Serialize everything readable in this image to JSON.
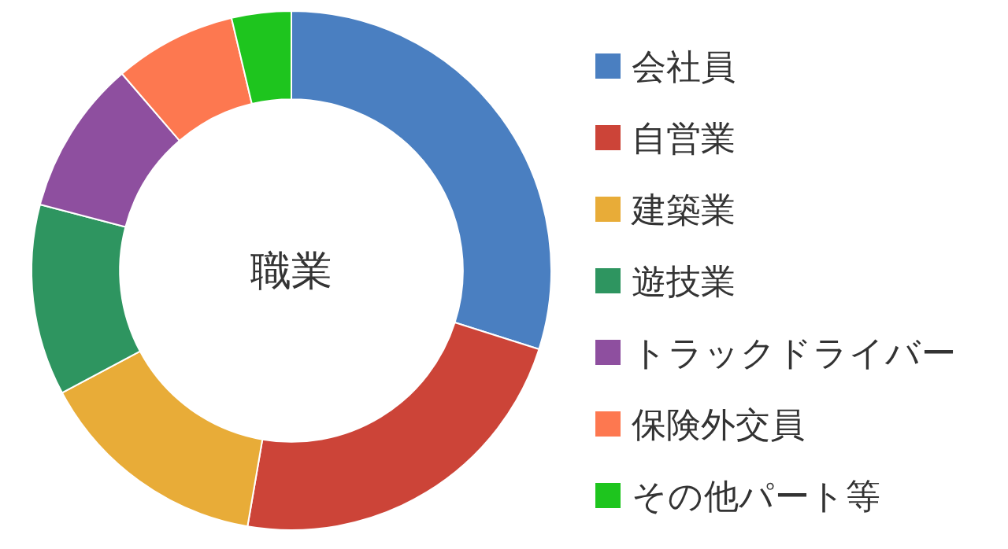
{
  "chart_data": {
    "type": "donut",
    "title": "職業",
    "categories": [
      "会社員",
      "自営業",
      "建築業",
      "遊技業",
      "トラックドライバー",
      "保険外交員",
      "その他パート等"
    ],
    "values": [
      29.9,
      22.8,
      14.5,
      11.9,
      9.6,
      7.6,
      3.7
    ],
    "colors": [
      "#4a7fc1",
      "#cc4438",
      "#e8ac38",
      "#2e9560",
      "#8e4f9f",
      "#fd7850",
      "#1ec51e"
    ],
    "legend": "right"
  }
}
